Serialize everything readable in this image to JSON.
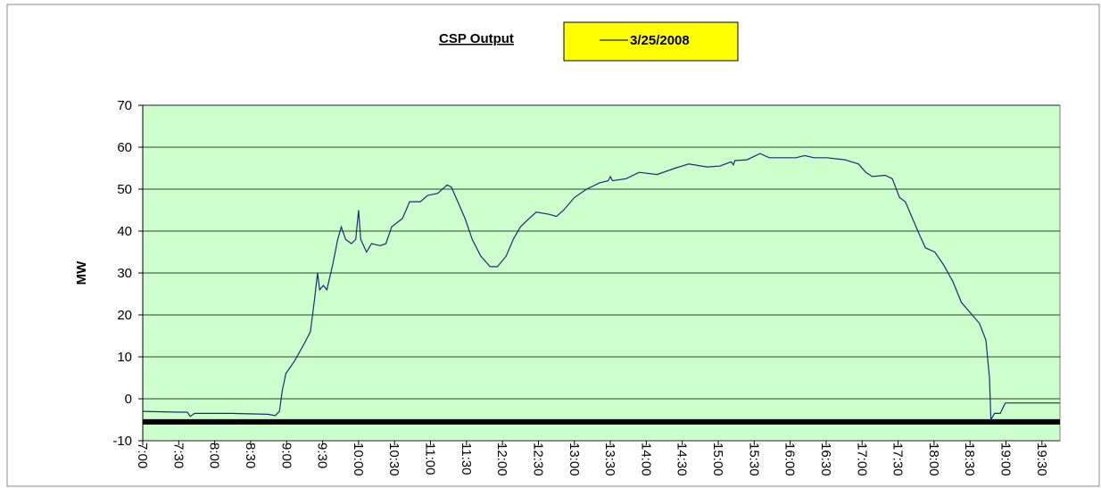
{
  "chart_data": {
    "type": "line",
    "title": "CSP Output",
    "y_label": "MW",
    "legend": "top",
    "grid": true,
    "background": "#ccffcc",
    "ylim": [
      -10,
      70
    ],
    "yticks": [
      -10,
      0,
      10,
      20,
      30,
      40,
      50,
      60,
      70
    ],
    "hline": -5.5,
    "xlim": [
      7,
      19.75
    ],
    "xticks": [
      {
        "value": 7,
        "label": "7:00"
      },
      {
        "value": 7.5,
        "label": "7:30"
      },
      {
        "value": 8,
        "label": "8:00"
      },
      {
        "value": 8.5,
        "label": "8:30"
      },
      {
        "value": 9,
        "label": "9:00"
      },
      {
        "value": 9.5,
        "label": "9:30"
      },
      {
        "value": 10,
        "label": "10:00"
      },
      {
        "value": 10.5,
        "label": "10:30"
      },
      {
        "value": 11,
        "label": "11:00"
      },
      {
        "value": 11.5,
        "label": "11:30"
      },
      {
        "value": 12,
        "label": "12:00"
      },
      {
        "value": 12.5,
        "label": "12:30"
      },
      {
        "value": 13,
        "label": "13:00"
      },
      {
        "value": 13.5,
        "label": "13:30"
      },
      {
        "value": 14,
        "label": "14:00"
      },
      {
        "value": 14.5,
        "label": "14:30"
      },
      {
        "value": 15,
        "label": "15:00"
      },
      {
        "value": 15.5,
        "label": "15:30"
      },
      {
        "value": 16,
        "label": "16:00"
      },
      {
        "value": 16.5,
        "label": "16:30"
      },
      {
        "value": 17,
        "label": "17:00"
      },
      {
        "value": 17.5,
        "label": "17:30"
      },
      {
        "value": 18,
        "label": "18:00"
      },
      {
        "value": 18.5,
        "label": "18:30"
      },
      {
        "value": 19,
        "label": "19:00"
      },
      {
        "value": 19.5,
        "label": "19:30"
      }
    ],
    "x": [
      7.0,
      7.5,
      7.62,
      7.66,
      7.72,
      8.24,
      8.74,
      8.84,
      8.9,
      8.94,
      8.99,
      9.11,
      9.24,
      9.33,
      9.39,
      9.43,
      9.46,
      9.51,
      9.56,
      9.64,
      9.71,
      9.76,
      9.82,
      9.9,
      9.96,
      10.0,
      10.03,
      10.11,
      10.18,
      10.3,
      10.38,
      10.46,
      10.61,
      10.71,
      10.86,
      10.96,
      11.1,
      11.23,
      11.29,
      11.38,
      11.48,
      11.58,
      11.7,
      11.83,
      11.93,
      12.05,
      12.15,
      12.25,
      12.37,
      12.47,
      12.65,
      12.75,
      12.85,
      13.0,
      13.17,
      13.35,
      13.47,
      13.5,
      13.53,
      13.72,
      13.9,
      14.15,
      14.4,
      14.59,
      14.84,
      15.02,
      15.18,
      15.21,
      15.23,
      15.4,
      15.52,
      15.58,
      15.71,
      16.08,
      16.2,
      16.33,
      16.51,
      16.76,
      16.95,
      17.05,
      17.14,
      17.32,
      17.42,
      17.52,
      17.6,
      17.7,
      17.8,
      17.88,
      18.01,
      18.13,
      18.26,
      18.38,
      18.53,
      18.63,
      18.72,
      18.77,
      18.79,
      18.84,
      18.92,
      18.99,
      19.75
    ],
    "series": [
      {
        "name": "3/25/2008",
        "color": "#1f2a78",
        "values": [
          -3,
          -3.2,
          -3.2,
          -4.2,
          -3.5,
          -3.5,
          -3.7,
          -4,
          -3,
          2,
          6,
          9,
          13,
          16,
          24,
          30,
          26,
          27,
          26,
          32,
          38,
          41,
          38,
          37,
          38,
          45,
          38,
          35,
          37,
          36.5,
          37,
          41,
          43,
          47,
          47,
          48.5,
          49,
          51,
          50.5,
          47,
          43,
          38,
          34,
          31.5,
          31.5,
          34,
          38,
          41,
          43,
          44.5,
          44,
          43.5,
          45,
          48,
          50,
          51.5,
          52,
          53,
          52,
          52.5,
          54,
          53.5,
          55,
          56,
          55.3,
          55.5,
          56.5,
          55.8,
          56.8,
          57,
          58,
          58.5,
          57.5,
          57.5,
          58,
          57.5,
          57.5,
          57,
          56,
          54,
          53,
          53.3,
          52.5,
          48,
          47,
          43,
          39,
          36,
          35,
          32,
          28,
          23,
          20,
          18,
          14,
          5,
          -5,
          -3.5,
          -3.5,
          -1,
          -1
        ]
      }
    ]
  }
}
